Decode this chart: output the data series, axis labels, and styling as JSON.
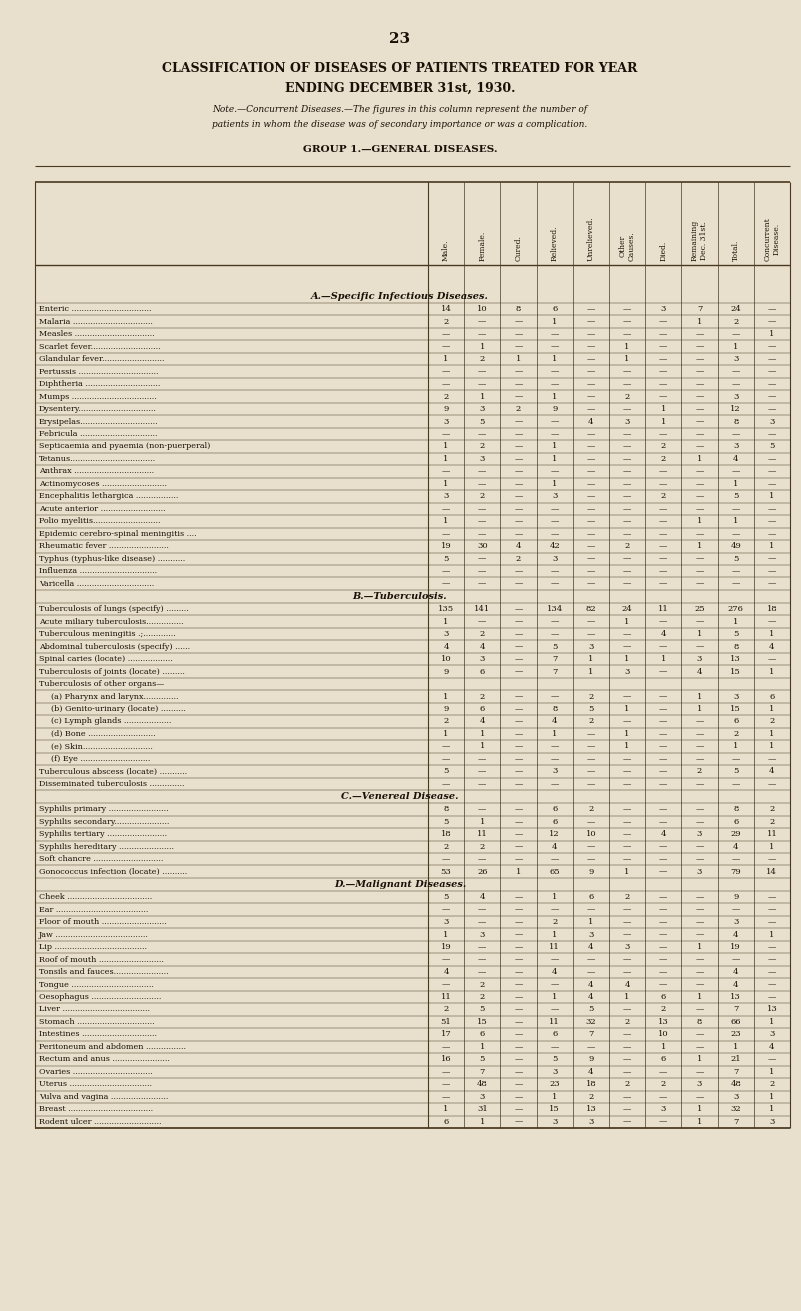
{
  "page_number": "23",
  "title_line1": "CLASSIFICATION OF DISEASES OF PATIENTS TREATED FOR YEAR",
  "title_line2": "ENDING DECEMBER 31st, 1930.",
  "note_line1": "Note.—Concurrent Diseases.—The figures in this column represent the number of",
  "note_line2": "patients in whom the disease was of secondary importance or was a complication.",
  "group_header": "GROUP 1.—GENERAL DISEASES.",
  "col_headers": [
    "Male.",
    "Female.",
    "Cured.",
    "Relieved.",
    "Unrelieved.",
    "Other\nCauses.",
    "Died.",
    "Remaining\nDec. 31st.",
    "Total.",
    "Concurrent\nDisease."
  ],
  "section_a_header": "A.—Specific Infectious Diseases.",
  "section_b_header": "B.—Tuberculosis.",
  "section_c_header": "C.—Venereal Disease.",
  "section_d_header": "D.—Malignant Diseases.",
  "rows": [
    [
      "Enteric ................................",
      "14",
      "10",
      "8",
      "6",
      "—",
      "—",
      "3",
      "7",
      "24",
      "—"
    ],
    [
      "Malaria ................................",
      "2",
      "—",
      "—",
      "1",
      "—",
      "—",
      "—",
      "1",
      "2",
      "—"
    ],
    [
      "Measles ................................",
      "—",
      "—",
      "—",
      "—",
      "—",
      "—",
      "—",
      "—",
      "—",
      "1"
    ],
    [
      "Scarlet fever............................",
      "—",
      "1",
      "—",
      "—",
      "—",
      "1",
      "—",
      "—",
      "1",
      "—"
    ],
    [
      "Glandular fever.........................",
      "1",
      "2",
      "1",
      "1",
      "—",
      "1",
      "—",
      "—",
      "3",
      "—"
    ],
    [
      "Pertussis ................................",
      "—",
      "—",
      "—",
      "—",
      "—",
      "—",
      "—",
      "—",
      "—",
      "—"
    ],
    [
      "Diphtheria ..............................",
      "—",
      "—",
      "—",
      "—",
      "—",
      "—",
      "—",
      "—",
      "—",
      "—"
    ],
    [
      "Mumps ..................................",
      "2",
      "1",
      "—",
      "1",
      "—",
      "2",
      "—",
      "—",
      "3",
      "—"
    ],
    [
      "Dysentery...............................",
      "9",
      "3",
      "2",
      "9",
      "—",
      "—",
      "1",
      "—",
      "12",
      "—"
    ],
    [
      "Erysipelas...............................",
      "3",
      "5",
      "—",
      "—",
      "4",
      "3",
      "1",
      "—",
      "8",
      "3"
    ],
    [
      "Febricula ...............................",
      "—",
      "—",
      "—",
      "—",
      "—",
      "—",
      "—",
      "—",
      "—",
      "—"
    ],
    [
      "Septicaemia and pyaemia (non-puerperal)",
      "1",
      "2",
      "—",
      "1",
      "—",
      "—",
      "2",
      "—",
      "3",
      "5"
    ],
    [
      "Tetanus..................................",
      "1",
      "3",
      "—",
      "1",
      "—",
      "—",
      "2",
      "1",
      "4",
      "—"
    ],
    [
      "Anthrax ................................",
      "—",
      "—",
      "—",
      "—",
      "—",
      "—",
      "—",
      "—",
      "—",
      "—"
    ],
    [
      "Actinomycoses ..........................",
      "1",
      "—",
      "—",
      "1",
      "—",
      "—",
      "—",
      "—",
      "1",
      "—"
    ],
    [
      "Encephalitis lethargica .................",
      "3",
      "2",
      "—",
      "3",
      "—",
      "—",
      "2",
      "—",
      "5",
      "1"
    ],
    [
      "Acute anterior ..........................",
      "—",
      "—",
      "—",
      "—",
      "—",
      "—",
      "—",
      "—",
      "—",
      "—"
    ],
    [
      "Polio myelitis...........................",
      "1",
      "—",
      "—",
      "—",
      "—",
      "—",
      "—",
      "1",
      "1",
      "—"
    ],
    [
      "Epidemic cerebro-spinal meningitis ....",
      "—",
      "—",
      "—",
      "—",
      "—",
      "—",
      "—",
      "—",
      "—",
      "—"
    ],
    [
      "Rheumatic fever ........................",
      "19",
      "30",
      "4",
      "42",
      "—",
      "2",
      "—",
      "1",
      "49",
      "1"
    ],
    [
      "Typhus (typhus-like disease) ...........",
      "5",
      "—",
      "2",
      "3",
      "—",
      "—",
      "—",
      "—",
      "5",
      "—"
    ],
    [
      "Influenza ...............................",
      "—",
      "—",
      "—",
      "—",
      "—",
      "—",
      "—",
      "—",
      "—",
      "—"
    ],
    [
      "Varicella ...............................",
      "—",
      "—",
      "—",
      "—",
      "—",
      "—",
      "—",
      "—",
      "—",
      "—"
    ],
    [
      "Tuberculosis of lungs (specify) .........",
      "135",
      "141",
      "—",
      "134",
      "82",
      "24",
      "11",
      "25",
      "276",
      "18"
    ],
    [
      "Acute miliary tuberculosis...............",
      "1",
      "—",
      "—",
      "—",
      "—",
      "1",
      "—",
      "—",
      "1",
      "—"
    ],
    [
      "Tuberculous meningitis .;.............",
      "3",
      "2",
      "—",
      "—",
      "—",
      "—",
      "4",
      "1",
      "5",
      "1"
    ],
    [
      "Abdominal tuberculosis (specify) ......",
      "4",
      "4",
      "—",
      "5",
      "3",
      "—",
      "—",
      "—",
      "8",
      "4"
    ],
    [
      "Spinal caries (locate) ..................",
      "10",
      "3",
      "—",
      "7",
      "1",
      "1",
      "1",
      "3",
      "13",
      "—"
    ],
    [
      "Tuberculosis of joints (locate) .........",
      "9",
      "6",
      "—",
      "7",
      "1",
      "3",
      "—",
      "4",
      "15",
      "1"
    ],
    [
      "Tuberculosis of other organs—",
      "",
      "",
      "",
      "",
      "",
      "",
      "",
      "",
      "",
      ""
    ],
    [
      "    (a) Pharynx and larynx..............",
      "1",
      "2",
      "—",
      "—",
      "2",
      "—",
      "—",
      "1",
      "3",
      "6"
    ],
    [
      "    (b) Genito-urinary (locate) ..........",
      "9",
      "6",
      "—",
      "8",
      "5",
      "1",
      "—",
      "1",
      "15",
      "1"
    ],
    [
      "    (c) Lymph glands ...................",
      "2",
      "4",
      "—",
      "4",
      "2",
      "—",
      "—",
      "—",
      "6",
      "2"
    ],
    [
      "    (d) Bone ...........................",
      "1",
      "1",
      "—",
      "1",
      "—",
      "1",
      "—",
      "—",
      "2",
      "1"
    ],
    [
      "    (e) Skin............................",
      "—",
      "1",
      "—",
      "—",
      "—",
      "1",
      "—",
      "—",
      "1",
      "1"
    ],
    [
      "    (f) Eye ............................",
      "—",
      "—",
      "—",
      "—",
      "—",
      "—",
      "—",
      "—",
      "—",
      "—"
    ],
    [
      "Tuberculous abscess (locate) ...........",
      "5",
      "—",
      "—",
      "3",
      "—",
      "—",
      "—",
      "2",
      "5",
      "4"
    ],
    [
      "Disseminated tuberculosis ..............",
      "—",
      "—",
      "—",
      "—",
      "—",
      "—",
      "—",
      "—",
      "—",
      "—"
    ],
    [
      "Syphilis primary ........................",
      "8",
      "—",
      "—",
      "6",
      "2",
      "—",
      "—",
      "—",
      "8",
      "2"
    ],
    [
      "Syphilis secondary......................",
      "5",
      "1",
      "—",
      "6",
      "—",
      "—",
      "—",
      "—",
      "6",
      "2"
    ],
    [
      "Syphilis tertiary ........................",
      "18",
      "11",
      "—",
      "12",
      "10",
      "—",
      "4",
      "3",
      "29",
      "11"
    ],
    [
      "Syphilis hereditary ......................",
      "2",
      "2",
      "—",
      "4",
      "—",
      "—",
      "—",
      "—",
      "4",
      "1"
    ],
    [
      "Soft chancre ............................",
      "—",
      "—",
      "—",
      "—",
      "—",
      "—",
      "—",
      "—",
      "—",
      "—"
    ],
    [
      "Gonococcus infection (locate) ..........",
      "53",
      "26",
      "1",
      "65",
      "9",
      "1",
      "—",
      "3",
      "79",
      "14"
    ],
    [
      "Cheek ..................................",
      "5",
      "4",
      "—",
      "1",
      "6",
      "2",
      "—",
      "—",
      "9",
      "—"
    ],
    [
      "Ear .....................................",
      "—",
      "—",
      "—",
      "—",
      "—",
      "—",
      "—",
      "—",
      "—",
      "—"
    ],
    [
      "Floor of mouth ..........................",
      "3",
      "—",
      "—",
      "2",
      "1",
      "—",
      "—",
      "—",
      "3",
      "—"
    ],
    [
      "Jaw .....................................",
      "1",
      "3",
      "—",
      "1",
      "3",
      "—",
      "—",
      "—",
      "4",
      "1"
    ],
    [
      "Lip .....................................",
      "19",
      "—",
      "—",
      "11",
      "4",
      "3",
      "—",
      "1",
      "19",
      "—"
    ],
    [
      "Roof of mouth ..........................",
      "—",
      "—",
      "—",
      "—",
      "—",
      "—",
      "—",
      "—",
      "—",
      "—"
    ],
    [
      "Tonsils and fauces......................",
      "4",
      "—",
      "—",
      "4",
      "—",
      "—",
      "—",
      "—",
      "4",
      "—"
    ],
    [
      "Tongue .................................",
      "—",
      "2",
      "—",
      "—",
      "4",
      "4",
      "—",
      "—",
      "4",
      "—"
    ],
    [
      "Oesophagus ............................",
      "11",
      "2",
      "—",
      "1",
      "4",
      "1",
      "6",
      "1",
      "13",
      "—"
    ],
    [
      "Liver ...................................",
      "2",
      "5",
      "—",
      "—",
      "5",
      "—",
      "2",
      "—",
      "7",
      "13"
    ],
    [
      "Stomach ...............................",
      "51",
      "15",
      "—",
      "11",
      "32",
      "2",
      "13",
      "8",
      "66",
      "1"
    ],
    [
      "Intestines ..............................",
      "17",
      "6",
      "—",
      "6",
      "7",
      "—",
      "10",
      "—",
      "23",
      "3"
    ],
    [
      "Peritoneum and abdomen ................",
      "—",
      "1",
      "—",
      "—",
      "—",
      "—",
      "1",
      "—",
      "1",
      "4"
    ],
    [
      "Rectum and anus .......................",
      "16",
      "5",
      "—",
      "5",
      "9",
      "—",
      "6",
      "1",
      "21",
      "—"
    ],
    [
      "Ovaries ................................",
      "—",
      "7",
      "—",
      "3",
      "4",
      "—",
      "—",
      "—",
      "7",
      "1"
    ],
    [
      "Uterus .................................",
      "—",
      "48",
      "—",
      "23",
      "18",
      "2",
      "2",
      "3",
      "48",
      "2"
    ],
    [
      "Vulva and vagina .......................",
      "—",
      "3",
      "—",
      "1",
      "2",
      "—",
      "—",
      "—",
      "3",
      "1"
    ],
    [
      "Breast ..................................",
      "1",
      "31",
      "—",
      "15",
      "13",
      "—",
      "3",
      "1",
      "32",
      "1"
    ],
    [
      "Rodent ulcer ...........................",
      "6",
      "1",
      "—",
      "3",
      "3",
      "—",
      "—",
      "1",
      "7",
      "3"
    ]
  ],
  "bg_color": "#e8e0cc",
  "text_color": "#1a1008",
  "line_color": "#4a3820"
}
